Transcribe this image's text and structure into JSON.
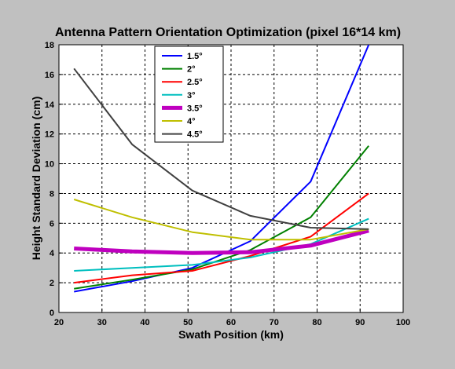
{
  "chart_data": {
    "type": "line",
    "title": "Antenna Pattern Orientation Optimization (pixel 16*14 km)",
    "xlabel": "Swath Position (km)",
    "ylabel": "Height Standard Deviation (cm)",
    "xlim": [
      20,
      100
    ],
    "ylim": [
      0,
      18
    ],
    "xticks": [
      20,
      30,
      40,
      50,
      60,
      70,
      80,
      90,
      100
    ],
    "yticks": [
      0,
      2,
      4,
      6,
      8,
      10,
      12,
      14,
      16,
      18
    ],
    "grid": true,
    "legend_position": "upper-left",
    "x": [
      23.5,
      37,
      51,
      64.5,
      78.5,
      92
    ],
    "series": [
      {
        "name": "1.5°",
        "color": "#0000ff",
        "width": 2,
        "values": [
          1.4,
          2.1,
          3.0,
          4.8,
          8.8,
          18.0
        ]
      },
      {
        "name": "2°",
        "color": "#008000",
        "width": 2,
        "values": [
          1.6,
          2.2,
          2.9,
          4.2,
          6.4,
          11.2
        ]
      },
      {
        "name": "2.5°",
        "color": "#ff0000",
        "width": 2,
        "values": [
          2.0,
          2.5,
          2.8,
          3.8,
          5.1,
          8.0
        ]
      },
      {
        "name": "3°",
        "color": "#00bfbf",
        "width": 2,
        "values": [
          2.8,
          3.0,
          3.2,
          3.7,
          4.6,
          6.3
        ]
      },
      {
        "name": "3.5°",
        "color": "#bf00bf",
        "width": 5,
        "values": [
          4.3,
          4.1,
          4.0,
          4.05,
          4.5,
          5.5
        ]
      },
      {
        "name": "4°",
        "color": "#bfbf00",
        "width": 2,
        "values": [
          7.6,
          6.4,
          5.4,
          4.9,
          4.9,
          5.6
        ]
      },
      {
        "name": "4.5°",
        "color": "#404040",
        "width": 2,
        "values": [
          16.4,
          11.3,
          8.2,
          6.5,
          5.7,
          5.6
        ]
      }
    ]
  },
  "colors": {
    "background": "#c0c0c0",
    "axes_face": "#ffffff",
    "grid": "#000000"
  }
}
